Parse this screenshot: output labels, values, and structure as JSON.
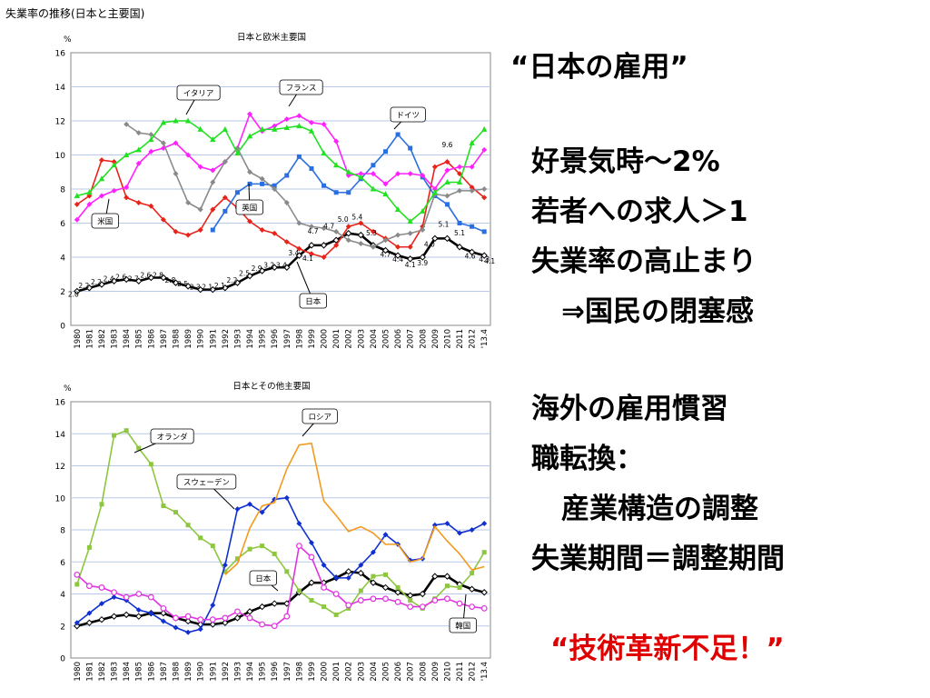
{
  "slide_title": "失業率の推移(日本と主要国)",
  "text": {
    "heading": "“日本の雇用”",
    "block1": [
      "好景気時～2%",
      "若者への求人＞1",
      "失業率の高止まり",
      "⇒国民の閉塞感"
    ],
    "block2": [
      "海外の雇用慣習",
      "職転換：",
      "産業構造の調整",
      "失業期間＝調整期間"
    ],
    "conclusion": "“技術革新不足！”"
  },
  "chart_data": [
    {
      "type": "line",
      "title": "日本と欧米主要国",
      "ylabel": "%",
      "ylim": [
        0,
        16
      ],
      "yticks": [
        "0",
        "2",
        "4",
        "6",
        "8",
        "10",
        "12",
        "14",
        "16"
      ],
      "grid": true,
      "categories": [
        "1980",
        "1981",
        "1982",
        "1983",
        "1984",
        "1985",
        "1986",
        "1987",
        "1988",
        "1989",
        "1990",
        "1991",
        "1992",
        "1993",
        "1994",
        "1995",
        "1996",
        "1997",
        "1998",
        "1999",
        "2000",
        "2001",
        "2002",
        "2003",
        "2004",
        "2005",
        "2006",
        "2007",
        "2008",
        "2009",
        "2010",
        "2011",
        "2012",
        "'13.4"
      ],
      "series": [
        {
          "name": "日本",
          "color": "#000000",
          "values": [
            2.0,
            2.2,
            2.4,
            2.6,
            2.7,
            2.6,
            2.8,
            2.8,
            2.5,
            2.3,
            2.1,
            2.1,
            2.2,
            2.5,
            2.9,
            3.2,
            3.4,
            3.4,
            4.1,
            4.7,
            4.7,
            5.0,
            5.4,
            5.3,
            4.7,
            4.4,
            4.1,
            3.9,
            4.0,
            5.1,
            5.1,
            4.6,
            4.3,
            4.1
          ]
        },
        {
          "name": "米国",
          "color": "#e8231a",
          "values": [
            7.1,
            7.6,
            9.7,
            9.6,
            7.5,
            7.2,
            7.0,
            6.2,
            5.5,
            5.3,
            5.6,
            6.8,
            7.5,
            6.9,
            6.1,
            5.6,
            5.4,
            4.9,
            4.5,
            4.2,
            4.0,
            4.7,
            5.8,
            6.0,
            5.5,
            5.1,
            4.6,
            4.6,
            5.8,
            9.3,
            9.6,
            8.9,
            8.1,
            7.5
          ]
        },
        {
          "name": "英国",
          "color": "#2a6fe0",
          "values": [
            null,
            null,
            null,
            null,
            null,
            null,
            null,
            null,
            null,
            null,
            null,
            5.6,
            6.7,
            7.8,
            8.3,
            8.3,
            8.2,
            8.8,
            9.9,
            9.2,
            8.2,
            7.8,
            7.8,
            8.6,
            9.4,
            10.2,
            11.2,
            10.4,
            8.7,
            7.6,
            7.1,
            6.0,
            5.8,
            5.5
          ]
        },
        {
          "name": "フランス",
          "color": "#ff22ff",
          "values": [
            6.2,
            7.1,
            7.6,
            7.9,
            8.1,
            9.5,
            10.2,
            10.4,
            10.7,
            10.0,
            9.3,
            9.1,
            9.6,
            10.4,
            12.4,
            11.4,
            11.7,
            12.1,
            12.3,
            11.9,
            11.8,
            10.8,
            8.8,
            8.9,
            8.9,
            8.3,
            8.9,
            8.9,
            8.8,
            8.0,
            9.1,
            9.3,
            9.3,
            10.3
          ]
        },
        {
          "name": "ドイツ",
          "color": "#8a8a8a",
          "values": [
            null,
            null,
            null,
            null,
            11.8,
            11.3,
            11.2,
            10.7,
            8.9,
            7.2,
            6.8,
            8.4,
            9.6,
            10.4,
            9.0,
            8.6,
            8.0,
            7.2,
            6.0,
            5.8,
            5.7,
            5.5,
            5.0,
            4.8,
            4.6,
            5.0,
            5.3,
            5.4,
            5.6,
            7.7,
            7.6,
            7.9,
            7.9,
            8.0
          ]
        },
        {
          "name": "イタリア",
          "color": "#22e022",
          "values": [
            7.6,
            7.8,
            8.6,
            9.4,
            10.0,
            10.3,
            10.9,
            11.9,
            12.0,
            12.0,
            11.5,
            10.9,
            11.5,
            10.1,
            11.1,
            11.5,
            11.5,
            11.6,
            11.7,
            11.4,
            10.1,
            9.4,
            9.0,
            8.7,
            8.0,
            7.7,
            6.8,
            6.1,
            6.7,
            7.8,
            8.4,
            8.4,
            10.7,
            11.5
          ]
        }
      ],
      "data_labels": [
        "2.0",
        "2.2",
        "2.2",
        "2.4",
        "2.6",
        "2.7",
        "2.6",
        "2.8",
        "2.8",
        "2.5",
        "2.3",
        "2.1",
        "2.1",
        "2.2",
        "2.5",
        "2.9",
        "3.2",
        "3.4",
        "3.4",
        "4.1",
        "4.7",
        "4.7",
        "5.0",
        "5.4",
        "5.3",
        "4.7",
        "4.4",
        "4.1",
        "3.9",
        "4.0",
        "5.1",
        "5.1",
        "4.6",
        "4.3",
        "4.1",
        "9.6"
      ]
    },
    {
      "type": "line",
      "title": "日本とその他主要国",
      "ylabel": "%",
      "ylim": [
        0,
        16
      ],
      "yticks": [
        "0",
        "2",
        "4",
        "6",
        "8",
        "10",
        "12",
        "14",
        "16"
      ],
      "grid": true,
      "categories": [
        "1980",
        "1981",
        "1982",
        "1983",
        "1984",
        "1985",
        "1986",
        "1987",
        "1988",
        "1989",
        "1990",
        "1991",
        "1992",
        "1993",
        "1994",
        "1995",
        "1996",
        "1997",
        "1998",
        "1999",
        "2000",
        "2001",
        "2002",
        "2003",
        "2004",
        "2005",
        "2006",
        "2007",
        "2008",
        "2009",
        "2010",
        "2011",
        "2012",
        "'13.4"
      ],
      "series": [
        {
          "name": "日本",
          "color": "#000000",
          "values": [
            2.0,
            2.2,
            2.4,
            2.6,
            2.7,
            2.6,
            2.8,
            2.8,
            2.5,
            2.3,
            2.1,
            2.1,
            2.2,
            2.5,
            2.9,
            3.2,
            3.4,
            3.4,
            4.1,
            4.7,
            4.7,
            5.0,
            5.4,
            5.3,
            4.7,
            4.4,
            4.1,
            3.9,
            4.0,
            5.1,
            5.1,
            4.6,
            4.3,
            4.1
          ]
        },
        {
          "name": "オランダ",
          "color": "#8dc63f",
          "values": [
            4.6,
            6.9,
            9.6,
            13.9,
            14.2,
            13.1,
            12.1,
            9.5,
            9.1,
            8.3,
            7.5,
            7.0,
            5.4,
            6.2,
            6.8,
            7.0,
            6.5,
            5.4,
            4.2,
            3.6,
            3.2,
            2.7,
            3.1,
            4.2,
            5.1,
            5.2,
            4.4,
            3.6,
            3.1,
            3.7,
            4.5,
            4.4,
            5.3,
            6.6
          ]
        },
        {
          "name": "スウェーデン",
          "color": "#1030d0",
          "values": [
            2.2,
            2.8,
            3.4,
            3.8,
            3.6,
            3.0,
            2.8,
            2.3,
            1.9,
            1.6,
            1.8,
            3.3,
            5.8,
            9.3,
            9.6,
            9.1,
            9.9,
            10.0,
            8.4,
            7.2,
            5.8,
            5.0,
            5.0,
            5.8,
            6.6,
            7.7,
            7.1,
            6.1,
            6.2,
            8.3,
            8.4,
            7.8,
            8.0,
            8.4
          ]
        },
        {
          "name": "ロシア",
          "color": "#f39a1e",
          "values": [
            null,
            null,
            null,
            null,
            null,
            null,
            null,
            null,
            null,
            null,
            null,
            null,
            5.2,
            5.9,
            8.1,
            9.5,
            9.7,
            11.8,
            13.3,
            13.4,
            9.8,
            8.9,
            7.9,
            8.2,
            7.8,
            7.1,
            7.1,
            6.0,
            6.2,
            8.2,
            7.3,
            6.5,
            5.5,
            5.7
          ]
        },
        {
          "name": "韓国",
          "color": "#e033e0",
          "values": [
            5.2,
            4.5,
            4.4,
            4.1,
            3.8,
            4.0,
            3.8,
            3.1,
            2.5,
            2.6,
            2.4,
            2.4,
            2.5,
            2.9,
            2.5,
            2.1,
            2.0,
            2.6,
            7.0,
            6.3,
            4.4,
            4.0,
            3.3,
            3.6,
            3.7,
            3.7,
            3.5,
            3.2,
            3.2,
            3.6,
            3.7,
            3.4,
            3.2,
            3.1
          ]
        }
      ]
    }
  ]
}
